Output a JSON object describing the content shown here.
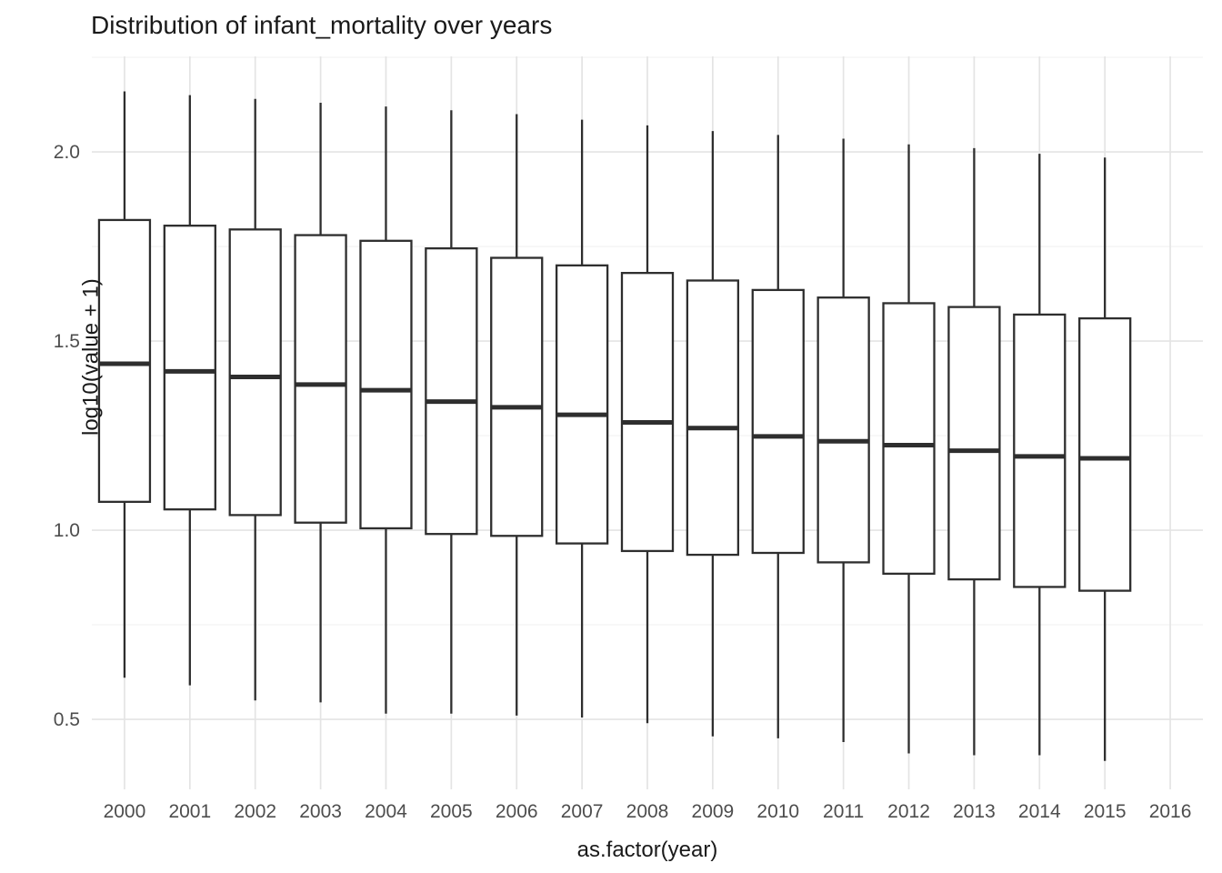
{
  "title": "Distribution of infant_mortality over years",
  "chart_data": {
    "type": "boxplot",
    "title": "Distribution of infant_mortality over years",
    "xlabel": "as.factor(year)",
    "ylabel": "log10(value + 1)",
    "categories": [
      "2000",
      "2001",
      "2002",
      "2003",
      "2004",
      "2005",
      "2006",
      "2007",
      "2008",
      "2009",
      "2010",
      "2011",
      "2012",
      "2013",
      "2014",
      "2015",
      "2016"
    ],
    "y_ticks": [
      0.5,
      1.0,
      1.5,
      2.0
    ],
    "y_minor_ticks": [
      0.75,
      1.25,
      1.75,
      2.25
    ],
    "ylim": [
      0.315,
      2.2525
    ],
    "grid": "horizontal major+minor, vertical major per category; no axis ticks; white background",
    "legend": "none",
    "boxes": [
      {
        "year": "2000",
        "whisker_low": 0.61,
        "q1": 1.075,
        "median": 1.44,
        "q3": 1.82,
        "whisker_high": 2.16
      },
      {
        "year": "2001",
        "whisker_low": 0.59,
        "q1": 1.055,
        "median": 1.42,
        "q3": 1.805,
        "whisker_high": 2.15
      },
      {
        "year": "2002",
        "whisker_low": 0.55,
        "q1": 1.04,
        "median": 1.405,
        "q3": 1.795,
        "whisker_high": 2.14
      },
      {
        "year": "2003",
        "whisker_low": 0.545,
        "q1": 1.02,
        "median": 1.385,
        "q3": 1.78,
        "whisker_high": 2.13
      },
      {
        "year": "2004",
        "whisker_low": 0.515,
        "q1": 1.005,
        "median": 1.37,
        "q3": 1.765,
        "whisker_high": 2.12
      },
      {
        "year": "2005",
        "whisker_low": 0.515,
        "q1": 0.99,
        "median": 1.34,
        "q3": 1.745,
        "whisker_high": 2.11
      },
      {
        "year": "2006",
        "whisker_low": 0.51,
        "q1": 0.985,
        "median": 1.325,
        "q3": 1.72,
        "whisker_high": 2.1
      },
      {
        "year": "2007",
        "whisker_low": 0.505,
        "q1": 0.965,
        "median": 1.305,
        "q3": 1.7,
        "whisker_high": 2.085
      },
      {
        "year": "2008",
        "whisker_low": 0.49,
        "q1": 0.945,
        "median": 1.285,
        "q3": 1.68,
        "whisker_high": 2.07
      },
      {
        "year": "2009",
        "whisker_low": 0.455,
        "q1": 0.935,
        "median": 1.27,
        "q3": 1.66,
        "whisker_high": 2.055
      },
      {
        "year": "2010",
        "whisker_low": 0.45,
        "q1": 0.94,
        "median": 1.248,
        "q3": 1.635,
        "whisker_high": 2.045
      },
      {
        "year": "2011",
        "whisker_low": 0.44,
        "q1": 0.915,
        "median": 1.235,
        "q3": 1.615,
        "whisker_high": 2.035
      },
      {
        "year": "2012",
        "whisker_low": 0.41,
        "q1": 0.885,
        "median": 1.225,
        "q3": 1.6,
        "whisker_high": 2.02
      },
      {
        "year": "2013",
        "whisker_low": 0.405,
        "q1": 0.87,
        "median": 1.21,
        "q3": 1.59,
        "whisker_high": 2.01
      },
      {
        "year": "2014",
        "whisker_low": 0.405,
        "q1": 0.85,
        "median": 1.195,
        "q3": 1.57,
        "whisker_high": 1.995
      },
      {
        "year": "2015",
        "whisker_low": 0.39,
        "q1": 0.84,
        "median": 1.19,
        "q3": 1.56,
        "whisker_high": 1.985
      },
      {
        "year": "2016",
        "whisker_low": null,
        "q1": null,
        "median": null,
        "q3": null,
        "whisker_high": null
      }
    ],
    "colors": {
      "box_stroke": "#2e2e2e",
      "box_fill": "#ffffff",
      "grid_major": "#e4e4e4",
      "grid_minor": "#f2f2f2",
      "tick_label": "#4d4d4d",
      "text": "#1a1a1a",
      "background": "#ffffff"
    }
  }
}
